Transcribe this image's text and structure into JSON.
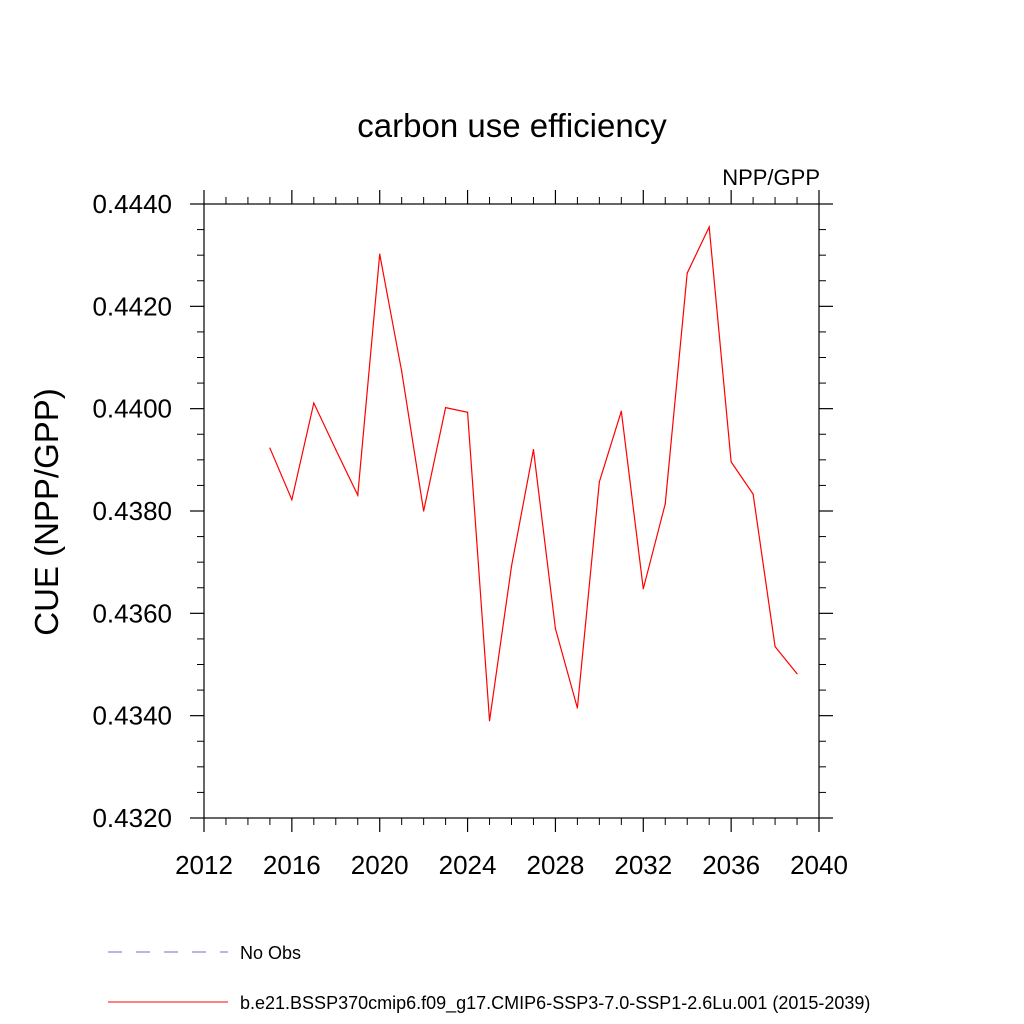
{
  "chart_data": {
    "type": "line",
    "title": "carbon use efficiency",
    "subtitle": "NPP/GPP",
    "xlabel": "",
    "ylabel": "CUE  (NPP/GPP)",
    "xlim": [
      2012,
      2040
    ],
    "ylim": [
      0.432,
      0.444
    ],
    "xticks": [
      2012,
      2016,
      2020,
      2024,
      2028,
      2032,
      2036,
      2040
    ],
    "xtick_labels": [
      "2012",
      "2016",
      "2020",
      "2024",
      "2028",
      "2032",
      "2036",
      "2040"
    ],
    "xminor_step": 1,
    "yticks": [
      0.432,
      0.434,
      0.436,
      0.438,
      0.44,
      0.442,
      0.444
    ],
    "ytick_labels": [
      "0.4320",
      "0.4340",
      "0.4360",
      "0.4380",
      "0.4400",
      "0.4420",
      "0.4440"
    ],
    "yminor_step": 0.0005,
    "grid": false,
    "series": [
      {
        "name": "b.e21.BSSP370cmip6.f09_g17.CMIP6-SSP3-7.0-SSP1-2.6Lu.001 (2015-2039)",
        "color": "#ff0000",
        "x": [
          2015,
          2016,
          2017,
          2018,
          2019,
          2020,
          2021,
          2022,
          2023,
          2024,
          2025,
          2026,
          2027,
          2028,
          2029,
          2030,
          2031,
          2032,
          2033,
          2034,
          2035,
          2036,
          2037,
          2038,
          2039
        ],
        "values": [
          0.43923,
          0.43822,
          0.44011,
          0.4392,
          0.43831,
          0.44302,
          0.44073,
          0.438,
          0.44002,
          0.43993,
          0.4339,
          0.43692,
          0.4392,
          0.4357,
          0.43415,
          0.43857,
          0.43995,
          0.43648,
          0.43814,
          0.44265,
          0.44355,
          0.43896,
          0.43833,
          0.43535,
          0.43482
        ]
      }
    ],
    "legend": [
      {
        "label": "No Obs",
        "color": "#7b68c8",
        "style": "dashed"
      },
      {
        "label": "b.e21.BSSP370cmip6.f09_g17.CMIP6-SSP3-7.0-SSP1-2.6Lu.001 (2015-2039)",
        "color": "#ff0000",
        "style": "solid"
      }
    ]
  }
}
